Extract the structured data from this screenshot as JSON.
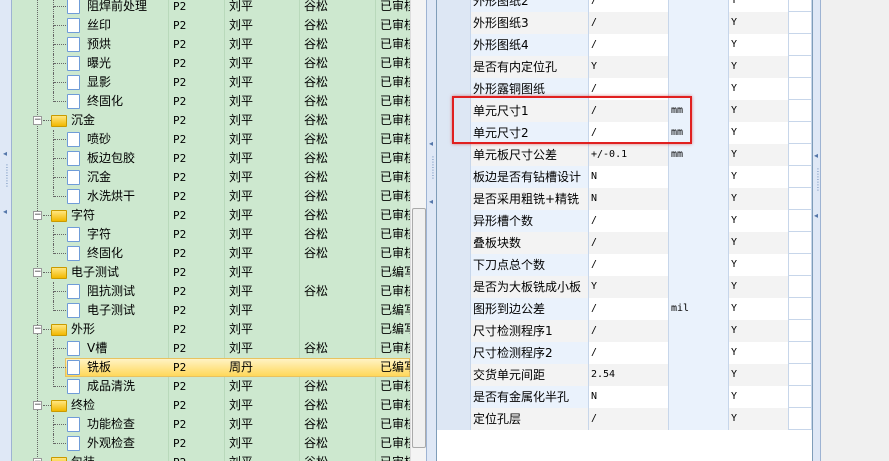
{
  "tree": {
    "rows": [
      {
        "name": "阻焊前处理",
        "type": "file",
        "level": 2,
        "rev": "P2",
        "author": "刘平",
        "reviewer": "谷松",
        "status": "已审核"
      },
      {
        "name": "丝印",
        "type": "file",
        "level": 2,
        "rev": "P2",
        "author": "刘平",
        "reviewer": "谷松",
        "status": "已审核"
      },
      {
        "name": "预烘",
        "type": "file",
        "level": 2,
        "rev": "P2",
        "author": "刘平",
        "reviewer": "谷松",
        "status": "已审核"
      },
      {
        "name": "曝光",
        "type": "file",
        "level": 2,
        "rev": "P2",
        "author": "刘平",
        "reviewer": "谷松",
        "status": "已审核"
      },
      {
        "name": "显影",
        "type": "file",
        "level": 2,
        "rev": "P2",
        "author": "刘平",
        "reviewer": "谷松",
        "status": "已审核"
      },
      {
        "name": "终固化",
        "type": "file",
        "level": 2,
        "rev": "P2",
        "author": "刘平",
        "reviewer": "谷松",
        "status": "已审核"
      },
      {
        "name": "沉金",
        "type": "folder",
        "level": 1,
        "rev": "P2",
        "author": "刘平",
        "reviewer": "谷松",
        "status": "已审核"
      },
      {
        "name": "喷砂",
        "type": "file",
        "level": 2,
        "rev": "P2",
        "author": "刘平",
        "reviewer": "谷松",
        "status": "已审核"
      },
      {
        "name": "板边包胶",
        "type": "file",
        "level": 2,
        "rev": "P2",
        "author": "刘平",
        "reviewer": "谷松",
        "status": "已审核"
      },
      {
        "name": "沉金",
        "type": "file",
        "level": 2,
        "rev": "P2",
        "author": "刘平",
        "reviewer": "谷松",
        "status": "已审核"
      },
      {
        "name": "水洗烘干",
        "type": "file",
        "level": 2,
        "rev": "P2",
        "author": "刘平",
        "reviewer": "谷松",
        "status": "已审核"
      },
      {
        "name": "字符",
        "type": "folder",
        "level": 1,
        "rev": "P2",
        "author": "刘平",
        "reviewer": "谷松",
        "status": "已审核"
      },
      {
        "name": "字符",
        "type": "file",
        "level": 2,
        "rev": "P2",
        "author": "刘平",
        "reviewer": "谷松",
        "status": "已审核"
      },
      {
        "name": "终固化",
        "type": "file",
        "level": 2,
        "rev": "P2",
        "author": "刘平",
        "reviewer": "谷松",
        "status": "已审核"
      },
      {
        "name": "电子测试",
        "type": "folder",
        "level": 1,
        "rev": "P2",
        "author": "刘平",
        "reviewer": "",
        "status": "已编写"
      },
      {
        "name": "阻抗测试",
        "type": "file",
        "level": 2,
        "rev": "P2",
        "author": "刘平",
        "reviewer": "谷松",
        "status": "已审核"
      },
      {
        "name": "电子测试",
        "type": "file",
        "level": 2,
        "rev": "P2",
        "author": "刘平",
        "reviewer": "",
        "status": "已编写"
      },
      {
        "name": "外形",
        "type": "folder",
        "level": 1,
        "rev": "P2",
        "author": "刘平",
        "reviewer": "",
        "status": "已编写"
      },
      {
        "name": "V槽",
        "type": "file",
        "level": 2,
        "rev": "P2",
        "author": "刘平",
        "reviewer": "谷松",
        "status": "已审核"
      },
      {
        "name": "铣板",
        "type": "file",
        "level": 2,
        "rev": "P2",
        "author": "周丹",
        "reviewer": "",
        "status": "已编写",
        "selected": true
      },
      {
        "name": "成品清洗",
        "type": "file",
        "level": 2,
        "rev": "P2",
        "author": "刘平",
        "reviewer": "谷松",
        "status": "已审核"
      },
      {
        "name": "终检",
        "type": "folder",
        "level": 1,
        "rev": "P2",
        "author": "刘平",
        "reviewer": "谷松",
        "status": "已审核"
      },
      {
        "name": "功能检查",
        "type": "file",
        "level": 2,
        "rev": "P2",
        "author": "刘平",
        "reviewer": "谷松",
        "status": "已审核"
      },
      {
        "name": "外观检查",
        "type": "file",
        "level": 2,
        "rev": "P2",
        "author": "刘平",
        "reviewer": "谷松",
        "status": "已审核"
      },
      {
        "name": "包装",
        "type": "folder",
        "level": 1,
        "rev": "P2",
        "author": "刘平",
        "reviewer": "谷松",
        "status": "已审核"
      }
    ]
  },
  "grid": {
    "rows": [
      {
        "param": "外形图纸2",
        "value": "/",
        "unit": "",
        "flag": "Y"
      },
      {
        "param": "外形图纸3",
        "value": "/",
        "unit": "",
        "flag": "Y"
      },
      {
        "param": "外形图纸4",
        "value": "/",
        "unit": "",
        "flag": "Y"
      },
      {
        "param": "是否有内定位孔",
        "value": "Y",
        "unit": "",
        "flag": "Y"
      },
      {
        "param": "外形露铜图纸",
        "value": "/",
        "unit": "",
        "flag": "Y"
      },
      {
        "param": "单元尺寸1",
        "value": "/",
        "unit": "mm",
        "flag": "Y"
      },
      {
        "param": "单元尺寸2",
        "value": "/",
        "unit": "mm",
        "flag": "Y"
      },
      {
        "param": "单元板尺寸公差",
        "value": "+/-0.1",
        "unit": "mm",
        "flag": "Y"
      },
      {
        "param": "板边是否有钻槽设计",
        "value": "N",
        "unit": "",
        "flag": "Y"
      },
      {
        "param": "是否采用粗铣+精铣",
        "value": "N",
        "unit": "",
        "flag": "Y"
      },
      {
        "param": "异形槽个数",
        "value": "/",
        "unit": "",
        "flag": "Y"
      },
      {
        "param": "叠板块数",
        "value": "/",
        "unit": "",
        "flag": "Y"
      },
      {
        "param": "下刀点总个数",
        "value": "/",
        "unit": "",
        "flag": "Y"
      },
      {
        "param": "是否为大板铣成小板",
        "value": "Y",
        "unit": "",
        "flag": "Y"
      },
      {
        "param": "图形到边公差",
        "value": "/",
        "unit": "mil",
        "flag": "Y"
      },
      {
        "param": "尺寸检测程序1",
        "value": "/",
        "unit": "",
        "flag": "Y"
      },
      {
        "param": "尺寸检测程序2",
        "value": "/",
        "unit": "",
        "flag": "Y"
      },
      {
        "param": "交货单元间距",
        "value": "2.54",
        "unit": "",
        "flag": "Y"
      },
      {
        "param": "是否有金属化半孔",
        "value": "N",
        "unit": "",
        "flag": "Y"
      },
      {
        "param": "定位孔层",
        "value": "/",
        "unit": "",
        "flag": "Y"
      }
    ]
  },
  "colors": {
    "tree_bg": "#cde8cf",
    "selection": "#ffd85a",
    "highlight_box": "#e02020"
  }
}
